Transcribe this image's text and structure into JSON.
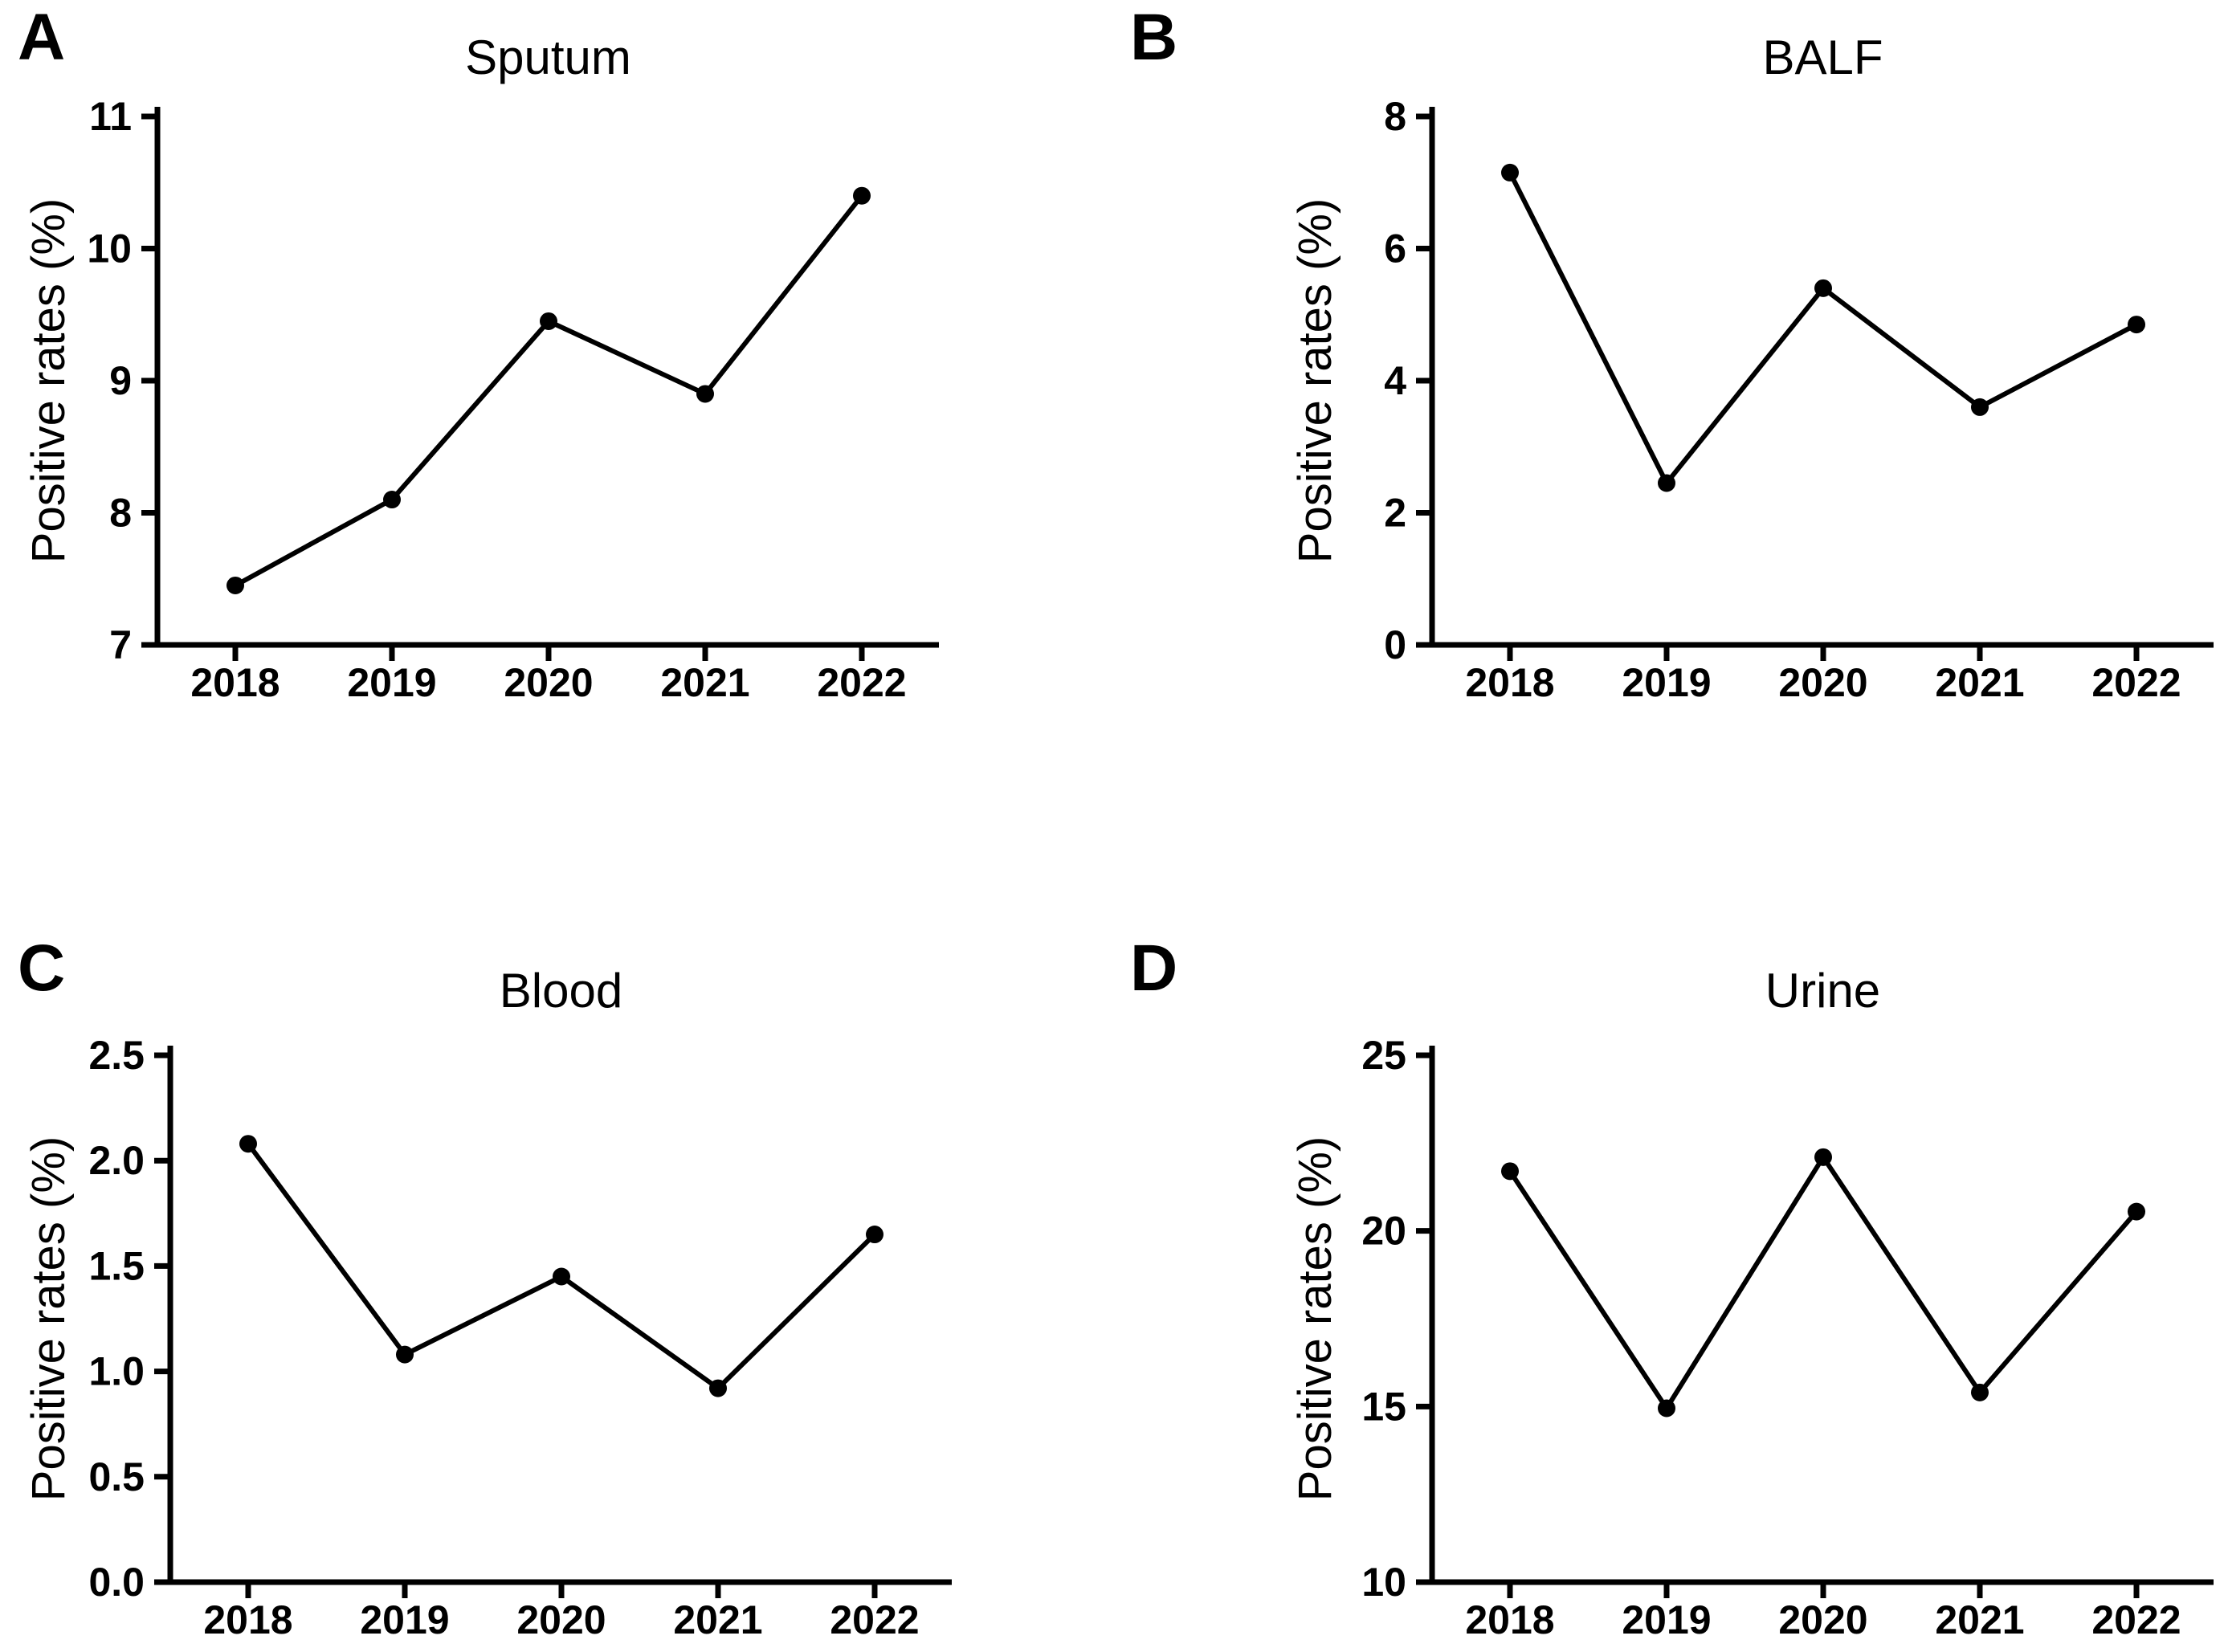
{
  "figure": {
    "background_color": "#ffffff",
    "line_color": "#000000",
    "marker": "filled-circle"
  },
  "chart_data": [
    {
      "type": "line",
      "panel_letter": "A",
      "title": "Sputum",
      "ylabel": "Positive rates (%)",
      "xlabel": "",
      "categories": [
        "2018",
        "2019",
        "2020",
        "2021",
        "2022"
      ],
      "values": [
        7.45,
        8.1,
        9.45,
        8.9,
        10.4
      ],
      "ylim": [
        7,
        11
      ],
      "yticks": [
        "7",
        "8",
        "9",
        "10",
        "11"
      ],
      "grid": false,
      "legend": "none"
    },
    {
      "type": "line",
      "panel_letter": "B",
      "title": "BALF",
      "ylabel": "Positive rates (%)",
      "xlabel": "",
      "categories": [
        "2018",
        "2019",
        "2020",
        "2021",
        "2022"
      ],
      "values": [
        7.15,
        2.45,
        5.4,
        3.6,
        4.85
      ],
      "ylim": [
        0,
        8
      ],
      "yticks": [
        "0",
        "2",
        "4",
        "6",
        "8"
      ],
      "grid": false,
      "legend": "none"
    },
    {
      "type": "line",
      "panel_letter": "C",
      "title": "Blood",
      "ylabel": "Positive rates (%)",
      "xlabel": "",
      "categories": [
        "2018",
        "2019",
        "2020",
        "2021",
        "2022"
      ],
      "values": [
        2.08,
        1.08,
        1.45,
        0.92,
        1.65
      ],
      "ylim": [
        0,
        2.5
      ],
      "yticks": [
        "0.0",
        "0.5",
        "1.0",
        "1.5",
        "2.0",
        "2.5"
      ],
      "grid": false,
      "legend": "none"
    },
    {
      "type": "line",
      "panel_letter": "D",
      "title": "Urine",
      "ylabel": "Positive rates (%)",
      "xlabel": "",
      "categories": [
        "2018",
        "2019",
        "2020",
        "2021",
        "2022"
      ],
      "values": [
        21.7,
        14.95,
        22.1,
        15.4,
        20.55
      ],
      "ylim": [
        10,
        25
      ],
      "yticks": [
        "10",
        "15",
        "20",
        "25"
      ],
      "grid": false,
      "legend": "none"
    }
  ]
}
